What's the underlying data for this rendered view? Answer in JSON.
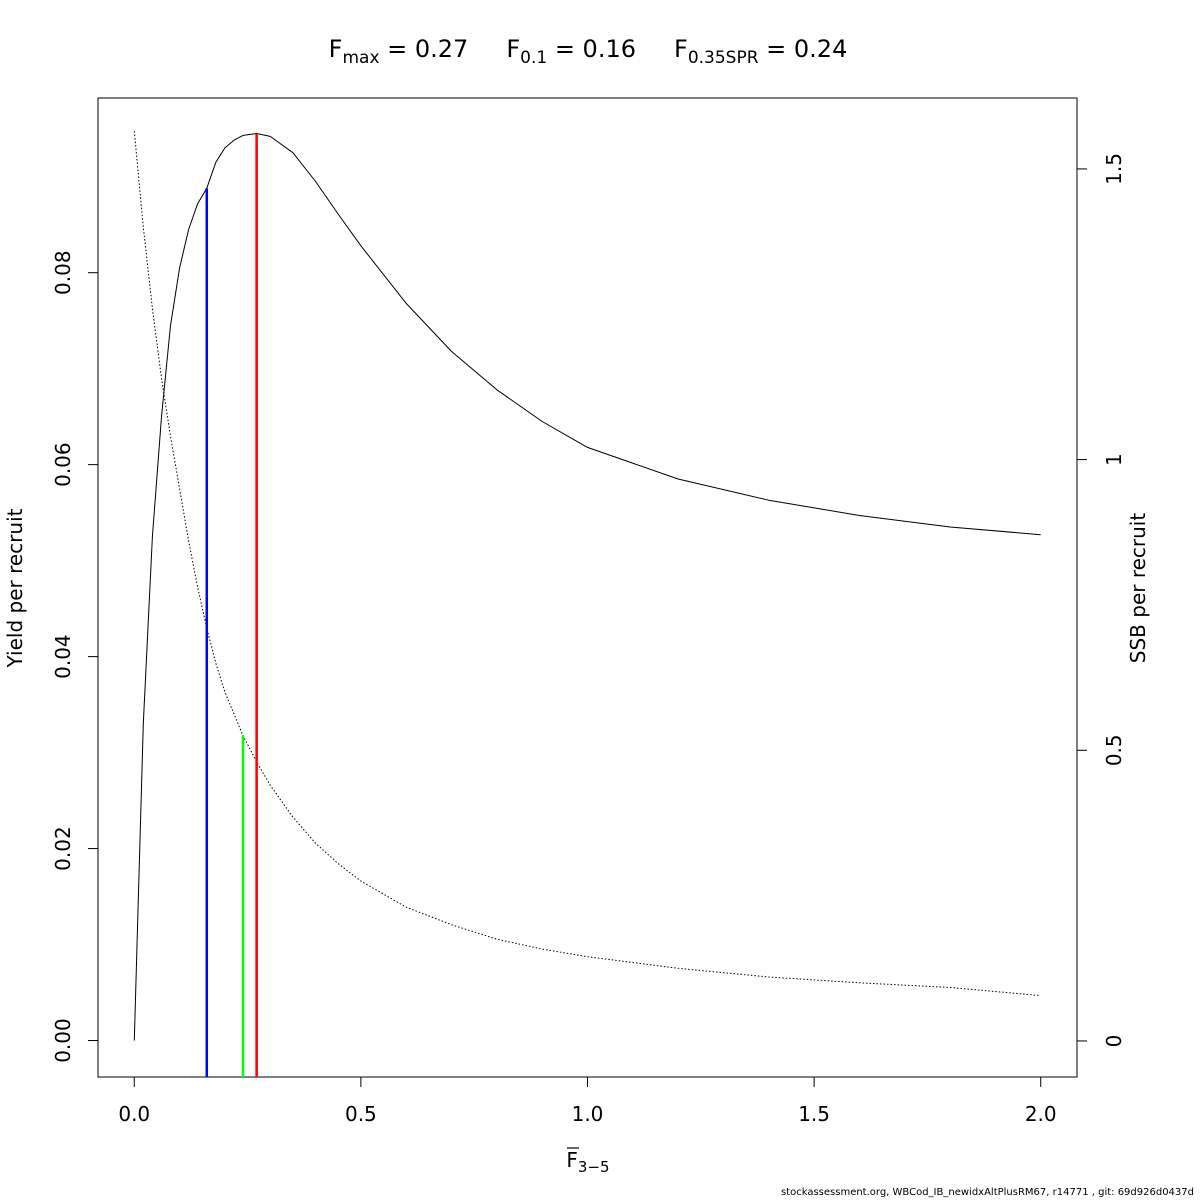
{
  "chart_data": {
    "type": "line",
    "title_parts": [
      {
        "F": "F",
        "sub": "max",
        "eq": " = 0.27"
      },
      {
        "F": "F",
        "sub": "0.1",
        "eq": " = 0.16"
      },
      {
        "F": "F",
        "sub": "0.35SPR",
        "eq": " = 0.24"
      }
    ],
    "xlabel": {
      "base": "F",
      "sub": "3−5"
    },
    "ylabel": "Yield per recruit",
    "y2label": "SSB per recruit",
    "xlim": [
      -0.08,
      2.08
    ],
    "ylim": [
      -0.0038,
      0.0982
    ],
    "y2lim": [
      -0.062,
      1.622
    ],
    "x_ticks": [
      0,
      0.5,
      1,
      1.5,
      2
    ],
    "x_tick_labels": [
      "0.0",
      "0.5",
      "1.0",
      "1.5",
      "2.0"
    ],
    "y_ticks": [
      0,
      0.02,
      0.04,
      0.06,
      0.08
    ],
    "y_tick_labels": [
      "0.00",
      "0.02",
      "0.04",
      "0.06",
      "0.08"
    ],
    "y2_ticks": [
      0,
      0.5,
      1,
      1.5
    ],
    "y2_tick_labels": [
      "0",
      "0.5",
      "1",
      "1.5"
    ],
    "series": [
      {
        "name": "Yield per recruit",
        "axis": "left",
        "style": "solid",
        "x": [
          0,
          0.02,
          0.04,
          0.06,
          0.08,
          0.1,
          0.12,
          0.14,
          0.16,
          0.18,
          0.2,
          0.22,
          0.24,
          0.27,
          0.3,
          0.35,
          0.4,
          0.45,
          0.5,
          0.6,
          0.7,
          0.8,
          0.9,
          1.0,
          1.2,
          1.4,
          1.6,
          1.8,
          2.0
        ],
        "values": [
          0,
          0.033,
          0.0525,
          0.065,
          0.0745,
          0.0805,
          0.0845,
          0.0872,
          0.0888,
          0.0915,
          0.093,
          0.0938,
          0.0943,
          0.0945,
          0.0942,
          0.0925,
          0.0895,
          0.0861,
          0.0828,
          0.0768,
          0.0718,
          0.0678,
          0.0645,
          0.0618,
          0.0585,
          0.0563,
          0.0547,
          0.0535,
          0.0527
        ]
      },
      {
        "name": "SSB per recruit",
        "axis": "right",
        "style": "dotted",
        "x": [
          0,
          0.02,
          0.04,
          0.06,
          0.08,
          0.1,
          0.12,
          0.14,
          0.16,
          0.18,
          0.2,
          0.24,
          0.27,
          0.3,
          0.35,
          0.4,
          0.45,
          0.5,
          0.6,
          0.7,
          0.8,
          0.9,
          1.0,
          1.2,
          1.4,
          1.6,
          1.8,
          2.0
        ],
        "values": [
          1.565,
          1.4,
          1.26,
          1.14,
          1.04,
          0.95,
          0.86,
          0.78,
          0.71,
          0.65,
          0.6,
          0.525,
          0.48,
          0.44,
          0.385,
          0.34,
          0.305,
          0.275,
          0.23,
          0.2,
          0.175,
          0.158,
          0.145,
          0.125,
          0.11,
          0.1,
          0.092,
          0.078
        ]
      }
    ],
    "reference_lines": [
      {
        "name": "F0.1",
        "x": 0.16,
        "y_top": 0.0888,
        "color": "#0000ff"
      },
      {
        "name": "F0.35SPR",
        "x": 0.24,
        "y_top": 0.0318,
        "color": "#00ff00"
      },
      {
        "name": "Fmax",
        "x": 0.27,
        "y_top": 0.0945,
        "color": "#ff0000"
      }
    ],
    "grid": false,
    "legend": "none"
  },
  "footer": "stockassessment.org, WBCod_IB_newidxAltPlusRM67, r14771 , git: 69d926d0437d"
}
